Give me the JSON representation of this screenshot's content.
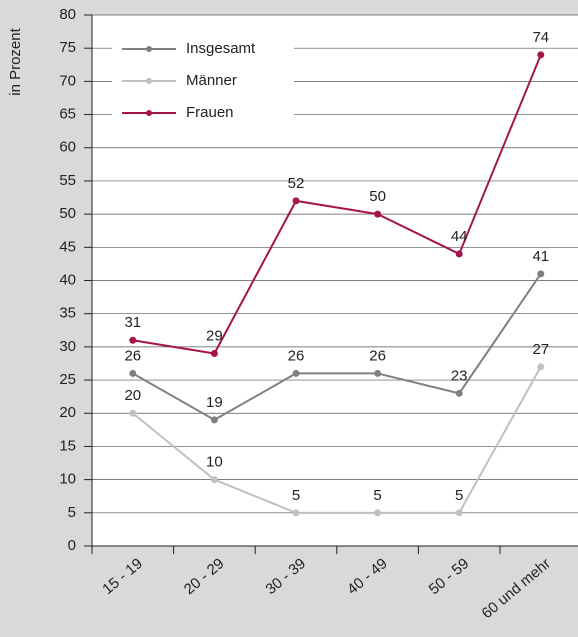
{
  "chart_data": {
    "type": "line",
    "ylabel": "in Prozent",
    "categories": [
      "15 - 19",
      "20 - 29",
      "30 - 39",
      "40 - 49",
      "50 - 59",
      "60 und mehr"
    ],
    "series": [
      {
        "name": "Insgesamt",
        "color": "#808080",
        "values": [
          26,
          19,
          26,
          26,
          23,
          41
        ]
      },
      {
        "name": "Männer",
        "color": "#c0c0c0",
        "values": [
          20,
          10,
          5,
          5,
          5,
          27
        ]
      },
      {
        "name": "Frauen",
        "color": "#a3154b",
        "values": [
          31,
          29,
          52,
          50,
          44,
          74
        ]
      }
    ],
    "ylim": [
      0,
      80
    ],
    "yticks": [
      0,
      5,
      10,
      15,
      20,
      25,
      30,
      35,
      40,
      45,
      50,
      55,
      60,
      65,
      70,
      75,
      80
    ],
    "grid": true,
    "legend": "upper left"
  }
}
